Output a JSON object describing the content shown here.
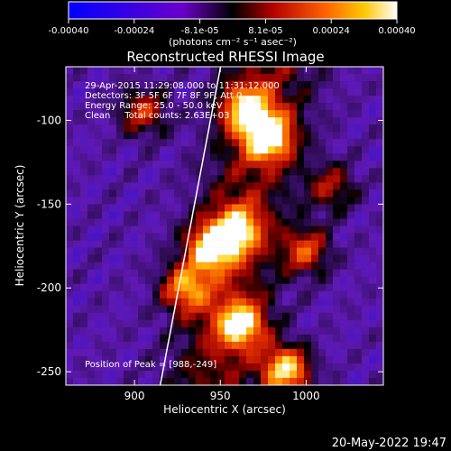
{
  "colorbar": {
    "tick_labels": [
      "-0.00040",
      "-0.00024",
      "-8.1e-05",
      "8.1e-05",
      "0.00024",
      "0.00040"
    ],
    "unit_label": "(photons cm⁻² s⁻¹ asec⁻²)",
    "range": [
      -0.0004,
      0.0004
    ]
  },
  "annotation": {
    "time": "29-Apr-2015 11:29:08.000 to 11:31:12.000",
    "detectors": "Detectors: 3F 5F 6F 7F 8F 9F, Att 0",
    "energy": "Energy Range: 25.0 - 50.0 keV",
    "clean": "Clean     Total counts: 2.63E+03",
    "peak": "Position of Peak = [988,-249]"
  },
  "footer_date": "20-May-2022 19:47",
  "chart_data": {
    "type": "heatmap",
    "title": "Reconstructed RHESSI Image",
    "xlabel": "Heliocentric X (arcsec)",
    "ylabel": "Heliocentric Y (arcsec)",
    "xlim": [
      860,
      1045
    ],
    "ylim": [
      -258,
      -68
    ],
    "x_ticks": [
      900,
      950,
      1000
    ],
    "y_ticks": [
      -100,
      -150,
      -200,
      -250
    ],
    "peak": [
      988,
      -249
    ],
    "emission_regions": [
      {
        "x": 965,
        "y": -93,
        "intensity": 0.85
      },
      {
        "x": 978,
        "y": -110,
        "intensity": 1.0
      },
      {
        "x": 945,
        "y": -176,
        "intensity": 0.95
      },
      {
        "x": 960,
        "y": -165,
        "intensity": 0.8
      },
      {
        "x": 930,
        "y": -200,
        "intensity": 0.75
      },
      {
        "x": 962,
        "y": -222,
        "intensity": 0.9
      },
      {
        "x": 988,
        "y": -249,
        "intensity": 1.0
      },
      {
        "x": 1000,
        "y": -178,
        "intensity": 0.6
      },
      {
        "x": 905,
        "y": -95,
        "intensity": 0.55
      },
      {
        "x": 1015,
        "y": -140,
        "intensity": 0.45
      }
    ]
  }
}
